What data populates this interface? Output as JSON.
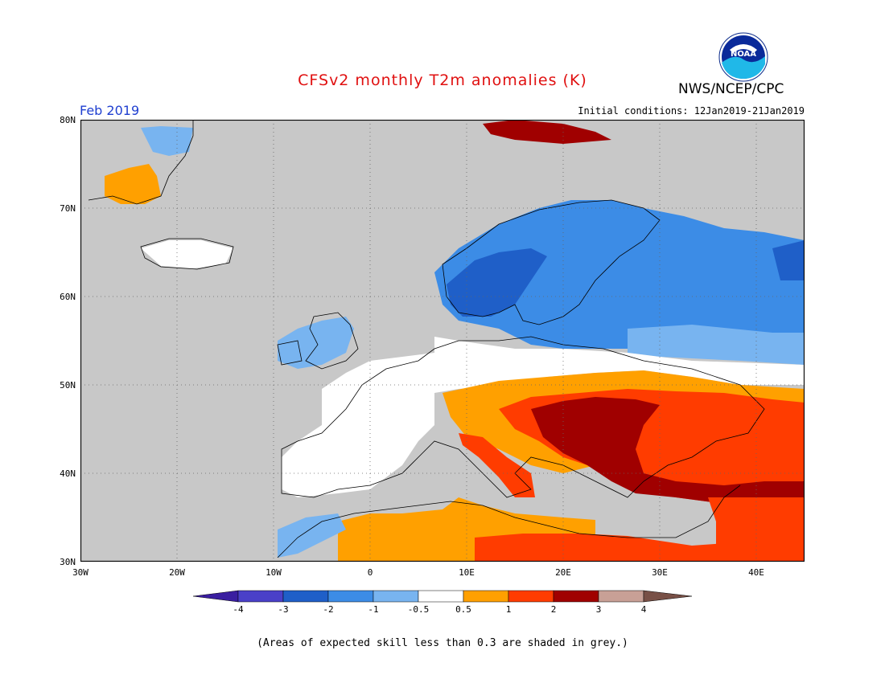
{
  "header": {
    "title": "CFSv2 monthly T2m anomalies (K)",
    "org": "NWS/NCEP/CPC",
    "logo_text": "NOAA",
    "month": "Feb 2019",
    "initial_conditions": "Initial conditions: 12Jan2019-21Jan2019"
  },
  "map": {
    "lon_range": [
      -30,
      45
    ],
    "lat_range": [
      30,
      80
    ],
    "lat_labels": [
      "80N",
      "70N",
      "60N",
      "50N",
      "40N",
      "30N"
    ],
    "lon_labels": [
      "30W",
      "20W",
      "10W",
      "0",
      "10E",
      "20E",
      "30E",
      "40E"
    ],
    "grid": "dotted",
    "background_color": "#c8c8c8"
  },
  "colorbar": {
    "labels": [
      "-4",
      "-3",
      "-2",
      "-1",
      "-0.5",
      "0.5",
      "1",
      "2",
      "3",
      "4"
    ],
    "colors": [
      "#3a1ea0",
      "#4a40c8",
      "#1f5fc8",
      "#3c8ce6",
      "#78b4f0",
      "#ffffff",
      "#ffa000",
      "#ff3c00",
      "#a00000",
      "#c8a096",
      "#785046"
    ]
  },
  "footnote": "(Areas of expected skill less than 0.3 are shaded in grey.)"
}
